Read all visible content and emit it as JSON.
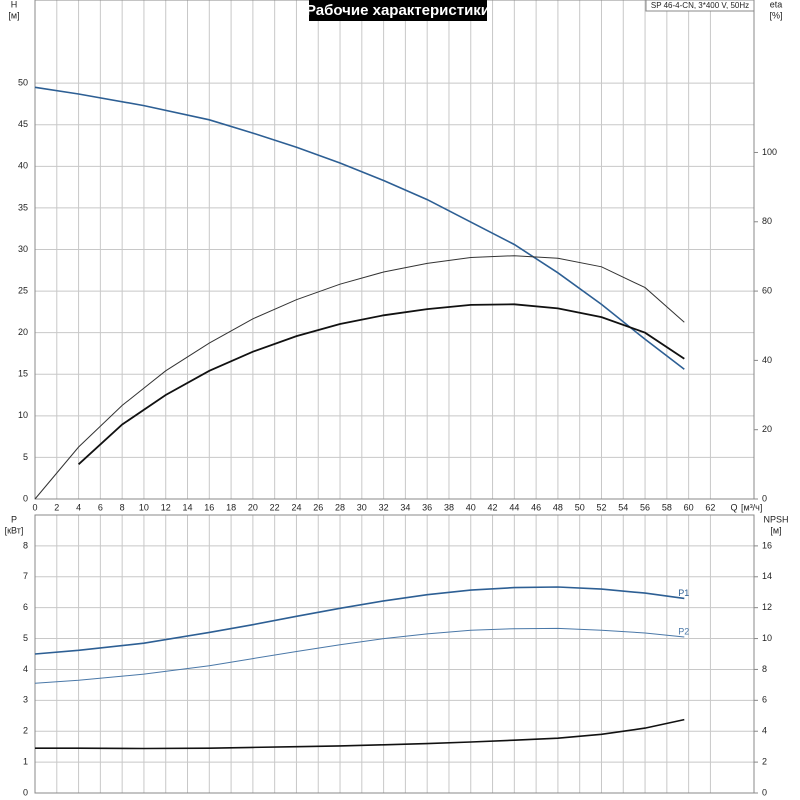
{
  "chart_data": [
    {
      "type": "line",
      "title": "Рабочие характеристики",
      "subtitle": "SP 46-4-CN, 3*400 V, 50Hz",
      "ylabel": "H",
      "yunit": "[м]",
      "y2label": "eta",
      "y2unit": "[%]",
      "xlabel": "Q",
      "xunit": "[м³/ч]",
      "xlim": [
        0,
        66
      ],
      "xticks": [
        0,
        2,
        4,
        6,
        8,
        10,
        12,
        14,
        16,
        18,
        20,
        22,
        24,
        26,
        28,
        30,
        32,
        34,
        36,
        38,
        40,
        42,
        44,
        46,
        48,
        50,
        52,
        54,
        56,
        58,
        60,
        62
      ],
      "ylim": [
        0,
        60
      ],
      "yticks": [
        0,
        5,
        10,
        15,
        20,
        25,
        30,
        35,
        40,
        45,
        50
      ],
      "y2lim": [
        0,
        144
      ],
      "y2ticks": [
        0,
        20,
        40,
        60,
        80,
        100
      ],
      "grid": true,
      "series": [
        {
          "color": "#2d5f94",
          "width": 1.6,
          "x": [
            0,
            4,
            10,
            16,
            20,
            24,
            28,
            32,
            36,
            40,
            44,
            48,
            52,
            56,
            59.6
          ],
          "values": [
            49.5,
            48.7,
            47.3,
            45.6,
            44,
            42.3,
            40.4,
            38.3,
            36,
            33.3,
            30.6,
            27.2,
            23.4,
            19.2,
            15.6
          ]
        },
        {
          "color": "#333333",
          "width": 1,
          "axis": "y2",
          "x": [
            0,
            4,
            8,
            12,
            16,
            20,
            24,
            28,
            32,
            36,
            40,
            44,
            48,
            52,
            56,
            59.6
          ],
          "values": [
            0,
            15,
            27,
            37,
            45,
            52,
            57.5,
            62,
            65.5,
            68,
            69.7,
            70.2,
            69.5,
            67,
            61,
            51
          ]
        },
        {
          "color": "#111111",
          "width": 1.8,
          "axis": "y2",
          "x": [
            4,
            8,
            12,
            16,
            20,
            24,
            28,
            32,
            36,
            40,
            44,
            48,
            52,
            56,
            59.6
          ],
          "values": [
            10,
            21.5,
            30,
            37,
            42.5,
            47,
            50.5,
            53,
            54.8,
            56,
            56.2,
            55,
            52.5,
            48,
            40.5
          ]
        }
      ]
    },
    {
      "type": "line",
      "ylabel": "P",
      "yunit": "[кВт]",
      "y2label": "NPSH",
      "y2unit": "[м]",
      "ylim": [
        0,
        9
      ],
      "yticks": [
        0,
        1,
        2,
        3,
        4,
        5,
        6,
        7,
        8
      ],
      "y2lim": [
        0,
        18
      ],
      "y2ticks": [
        0,
        2,
        4,
        6,
        8,
        10,
        12,
        14,
        16
      ],
      "grid": true,
      "series": [
        {
          "name": "P1",
          "color": "#2d5f94",
          "width": 1.6,
          "x": [
            0,
            4,
            10,
            16,
            20,
            24,
            28,
            32,
            36,
            40,
            44,
            48,
            52,
            56,
            59.6
          ],
          "values": [
            4.5,
            4.62,
            4.85,
            5.2,
            5.45,
            5.72,
            5.98,
            6.22,
            6.42,
            6.57,
            6.65,
            6.67,
            6.6,
            6.47,
            6.3
          ]
        },
        {
          "name": "P2",
          "color": "#4a78a8",
          "width": 1,
          "x": [
            0,
            4,
            10,
            16,
            20,
            24,
            28,
            32,
            36,
            40,
            44,
            48,
            52,
            56,
            59.6
          ],
          "values": [
            3.55,
            3.65,
            3.85,
            4.12,
            4.35,
            4.58,
            4.8,
            5,
            5.15,
            5.27,
            5.32,
            5.33,
            5.27,
            5.18,
            5.05
          ]
        },
        {
          "color": "#111111",
          "width": 1.6,
          "axis": "y2",
          "x": [
            0,
            4,
            10,
            16,
            20,
            24,
            28,
            32,
            36,
            40,
            44,
            48,
            52,
            56,
            59.6
          ],
          "values": [
            2.9,
            2.9,
            2.88,
            2.9,
            2.95,
            3,
            3.05,
            3.12,
            3.2,
            3.3,
            3.42,
            3.55,
            3.8,
            4.2,
            4.75
          ]
        }
      ]
    }
  ]
}
